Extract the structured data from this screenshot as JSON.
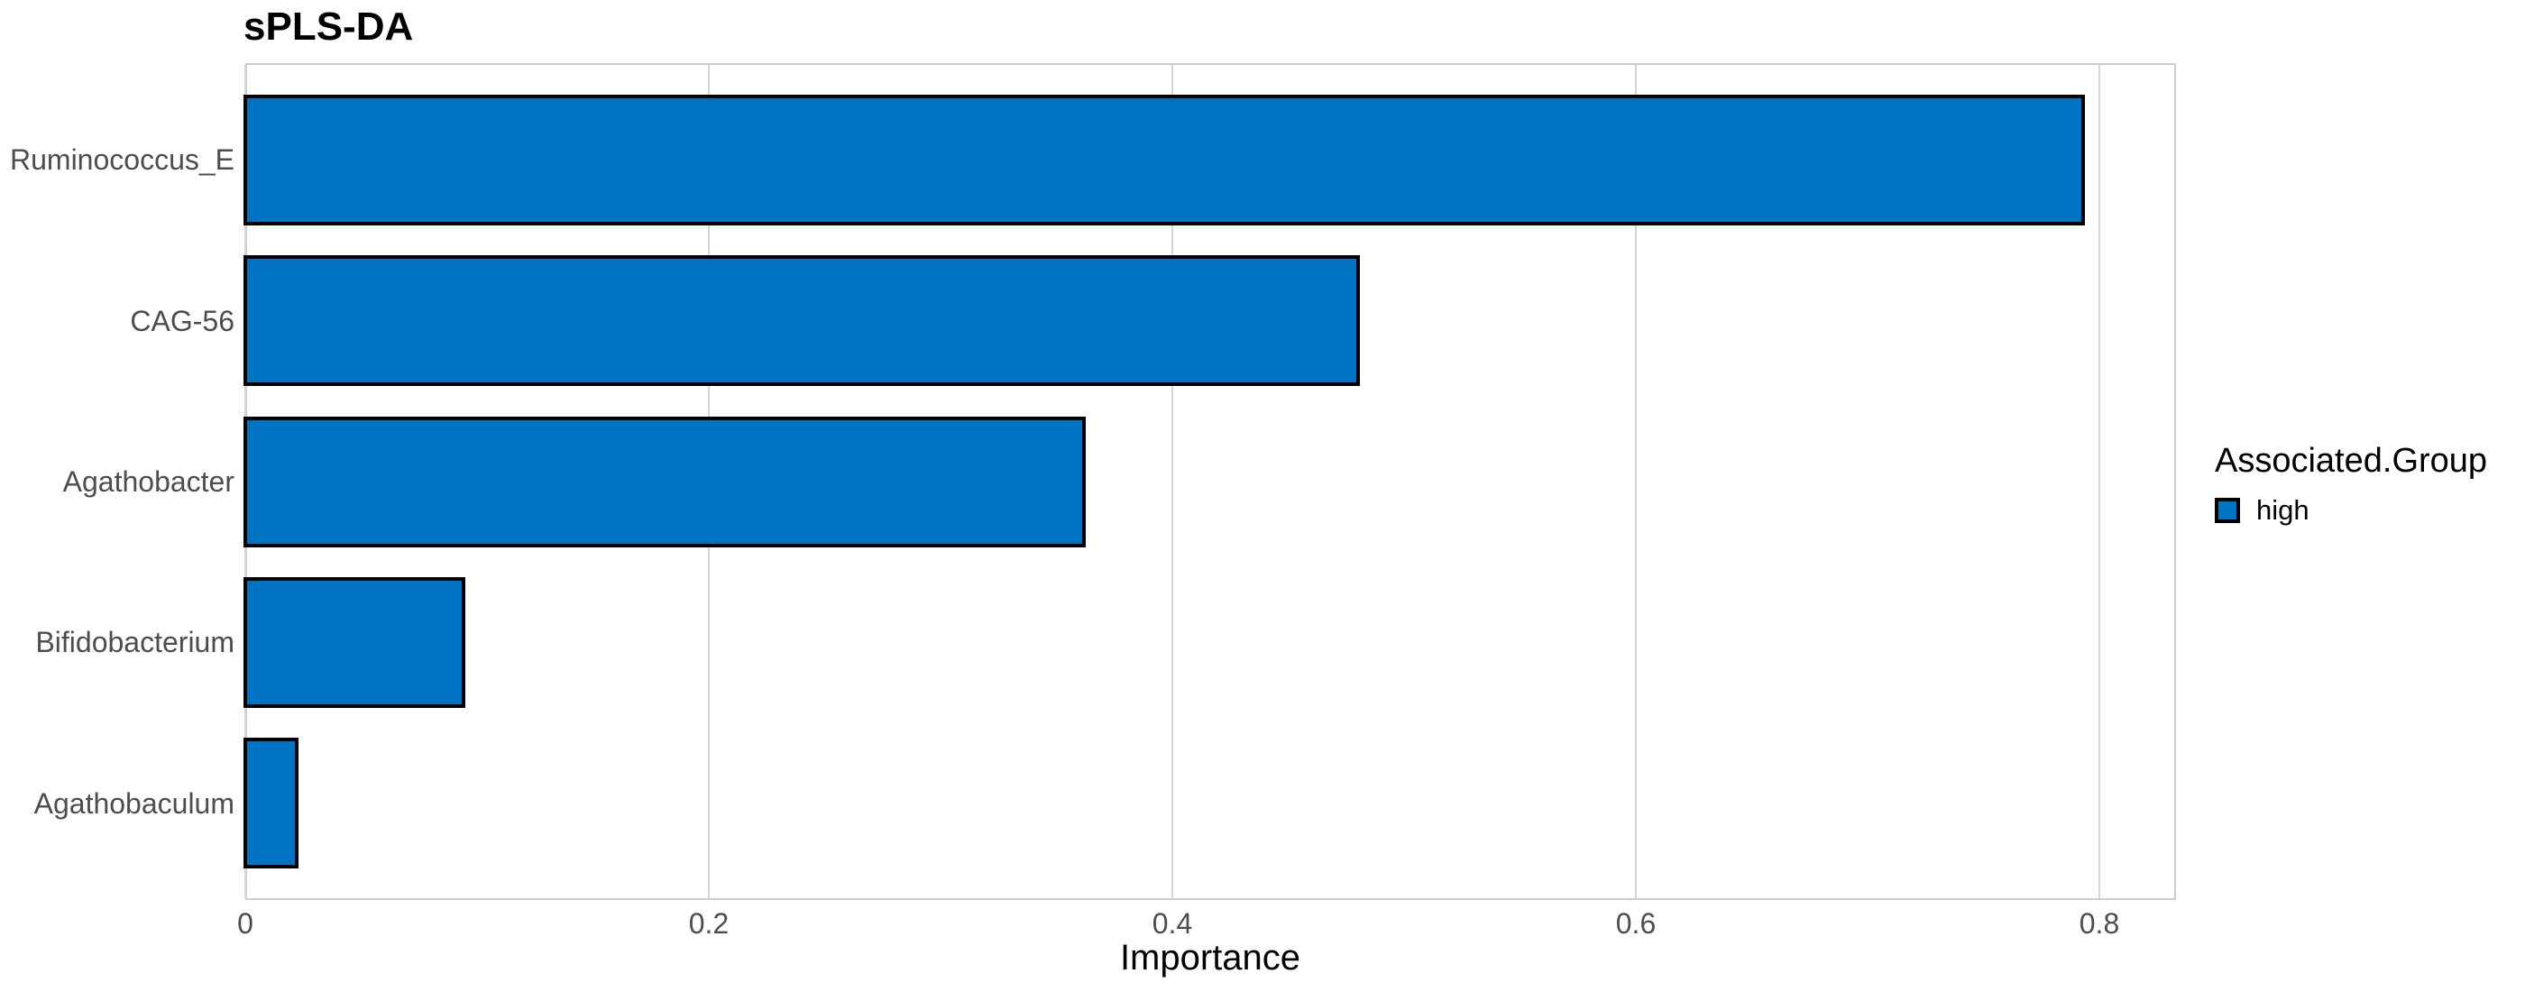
{
  "chart_data": {
    "type": "bar",
    "orientation": "horizontal",
    "title": "sPLS-DA",
    "xlabel": "Importance",
    "ylabel": "",
    "categories": [
      "Ruminococcus_E",
      "CAG-56",
      "Agathobacter",
      "Bifidobacterium",
      "Agathobaculum"
    ],
    "series": [
      {
        "name": "high",
        "values": [
          0.793,
          0.48,
          0.362,
          0.094,
          0.022
        ]
      }
    ],
    "xlim": [
      0,
      0.833
    ],
    "xticks": {
      "values": [
        0,
        0.2,
        0.4,
        0.6,
        0.8
      ],
      "labels": [
        "0",
        "0.2",
        "0.4",
        "0.6",
        "0.8"
      ]
    },
    "grid": "vertical-major-only",
    "legend": {
      "position": "right",
      "title": "Associated.Group",
      "entries": [
        {
          "label": "high",
          "color": "#0073C2"
        }
      ]
    },
    "colors": {
      "bar_fill": "#0073C2",
      "bar_stroke": "#000000",
      "grid_line": "#D6D6D6",
      "panel_border": "#CCCCCC",
      "tick_text": "#4D4D4D",
      "title_text": "#000000"
    }
  }
}
